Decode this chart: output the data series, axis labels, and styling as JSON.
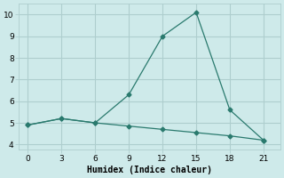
{
  "line1_x": [
    0,
    3,
    6,
    9,
    12,
    15,
    18,
    21
  ],
  "line1_y": [
    4.9,
    5.2,
    5.0,
    6.3,
    9.0,
    10.1,
    5.6,
    4.2
  ],
  "line2_x": [
    0,
    3,
    6,
    9,
    12,
    15,
    18,
    21
  ],
  "line2_y": [
    4.9,
    5.2,
    5.0,
    4.85,
    4.7,
    4.55,
    4.4,
    4.2
  ],
  "color": "#2a7a6e",
  "xlabel": "Humidex (Indice chaleur)",
  "xlim": [
    -0.8,
    22.5
  ],
  "ylim": [
    3.75,
    10.5
  ],
  "xticks": [
    0,
    3,
    6,
    9,
    12,
    15,
    18,
    21
  ],
  "yticks": [
    4,
    5,
    6,
    7,
    8,
    9,
    10
  ],
  "bg_color": "#ceeaea",
  "grid_color": "#aecece",
  "marker": "D",
  "markersize": 2.5,
  "linewidth": 0.9,
  "tick_labelsize": 6.5,
  "xlabel_fontsize": 7.0
}
